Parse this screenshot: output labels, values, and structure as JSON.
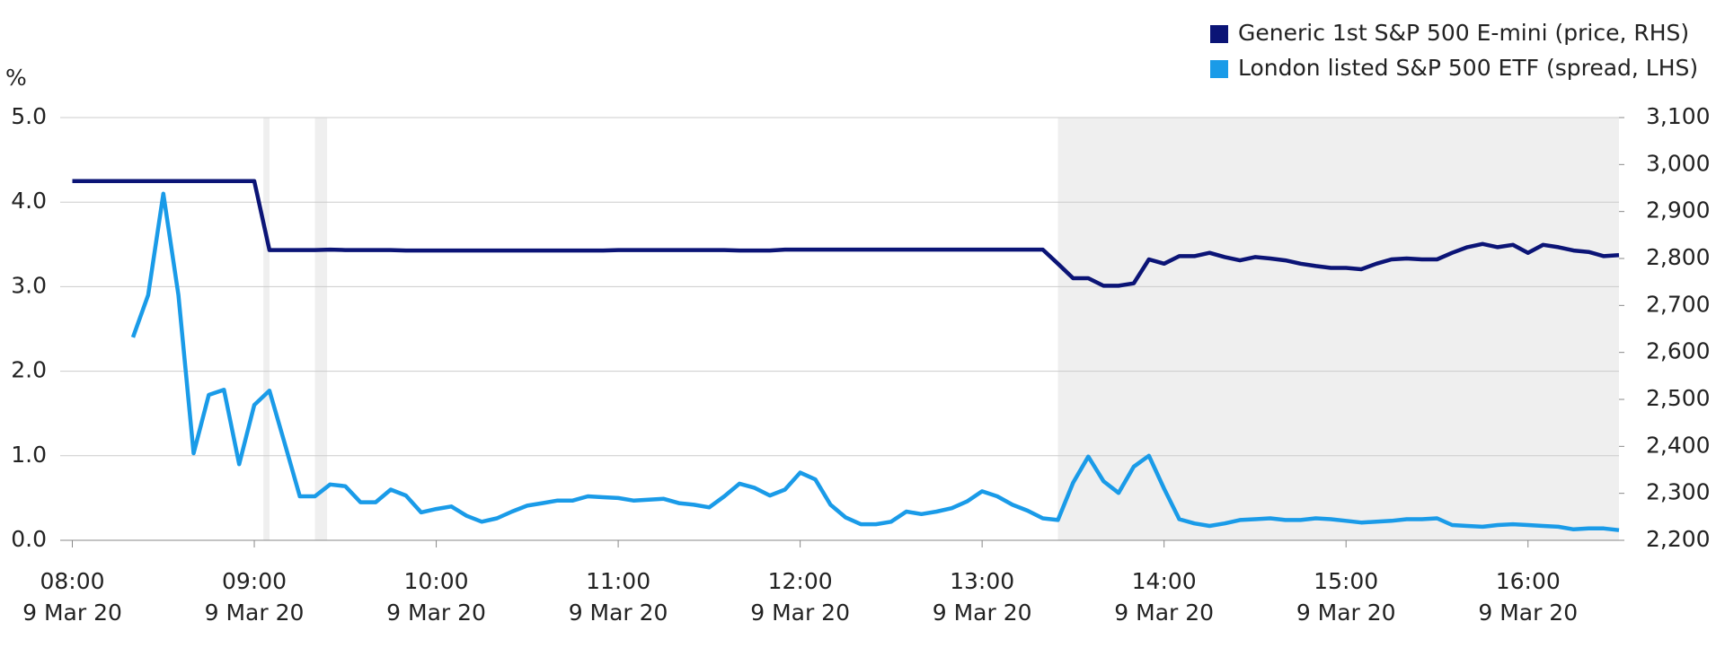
{
  "chart_data": {
    "type": "line",
    "y_label": "%",
    "x": [
      "2020-03-09T08:00",
      "2020-03-09T08:05",
      "2020-03-09T08:10",
      "2020-03-09T08:15",
      "2020-03-09T08:20",
      "2020-03-09T08:25",
      "2020-03-09T08:30",
      "2020-03-09T08:35",
      "2020-03-09T08:40",
      "2020-03-09T08:45",
      "2020-03-09T08:50",
      "2020-03-09T08:55",
      "2020-03-09T09:00",
      "2020-03-09T09:05",
      "2020-03-09T09:10",
      "2020-03-09T09:15",
      "2020-03-09T09:20",
      "2020-03-09T09:25",
      "2020-03-09T09:30",
      "2020-03-09T09:35",
      "2020-03-09T09:40",
      "2020-03-09T09:45",
      "2020-03-09T09:50",
      "2020-03-09T09:55",
      "2020-03-09T10:00",
      "2020-03-09T10:05",
      "2020-03-09T10:10",
      "2020-03-09T10:15",
      "2020-03-09T10:20",
      "2020-03-09T10:25",
      "2020-03-09T10:30",
      "2020-03-09T10:35",
      "2020-03-09T10:40",
      "2020-03-09T10:45",
      "2020-03-09T10:50",
      "2020-03-09T10:55",
      "2020-03-09T11:00",
      "2020-03-09T11:05",
      "2020-03-09T11:10",
      "2020-03-09T11:15",
      "2020-03-09T11:20",
      "2020-03-09T11:25",
      "2020-03-09T11:30",
      "2020-03-09T11:35",
      "2020-03-09T11:40",
      "2020-03-09T11:45",
      "2020-03-09T11:50",
      "2020-03-09T11:55",
      "2020-03-09T12:00",
      "2020-03-09T12:05",
      "2020-03-09T12:10",
      "2020-03-09T12:15",
      "2020-03-09T12:20",
      "2020-03-09T12:25",
      "2020-03-09T12:30",
      "2020-03-09T12:35",
      "2020-03-09T12:40",
      "2020-03-09T12:45",
      "2020-03-09T12:50",
      "2020-03-09T12:55",
      "2020-03-09T13:00",
      "2020-03-09T13:05",
      "2020-03-09T13:10",
      "2020-03-09T13:15",
      "2020-03-09T13:20",
      "2020-03-09T13:25",
      "2020-03-09T13:30",
      "2020-03-09T13:35",
      "2020-03-09T13:40",
      "2020-03-09T13:45",
      "2020-03-09T13:50",
      "2020-03-09T13:55",
      "2020-03-09T14:00",
      "2020-03-09T14:05",
      "2020-03-09T14:10",
      "2020-03-09T14:15",
      "2020-03-09T14:20",
      "2020-03-09T14:25",
      "2020-03-09T14:30",
      "2020-03-09T14:35",
      "2020-03-09T14:40",
      "2020-03-09T14:45",
      "2020-03-09T14:50",
      "2020-03-09T14:55",
      "2020-03-09T15:00",
      "2020-03-09T15:05",
      "2020-03-09T15:10",
      "2020-03-09T15:15",
      "2020-03-09T15:20",
      "2020-03-09T15:25",
      "2020-03-09T15:30",
      "2020-03-09T15:35",
      "2020-03-09T15:40",
      "2020-03-09T15:45",
      "2020-03-09T15:50",
      "2020-03-09T15:55",
      "2020-03-09T16:00",
      "2020-03-09T16:05",
      "2020-03-09T16:10",
      "2020-03-09T16:15",
      "2020-03-09T16:20",
      "2020-03-09T16:25",
      "2020-03-09T16:30"
    ],
    "series": [
      {
        "name": "Generic 1st S&P 500 E-mini (price, RHS)",
        "color": "#0b1476",
        "axis": "y2",
        "values": [
          2965,
          2965,
          2965,
          2965,
          2965,
          2965,
          2965,
          2965,
          2965,
          2965,
          2965,
          2965,
          2965,
          2818,
          2818,
          2818,
          2818,
          2819,
          2818,
          2818,
          2818,
          2818,
          2817,
          2817,
          2817,
          2817,
          2817,
          2817,
          2817,
          2817,
          2817,
          2817,
          2817,
          2817,
          2817,
          2817,
          2818,
          2818,
          2818,
          2818,
          2818,
          2818,
          2818,
          2818,
          2817,
          2817,
          2817,
          2819,
          2819,
          2819,
          2819,
          2819,
          2819,
          2819,
          2819,
          2819,
          2819,
          2819,
          2819,
          2819,
          2819,
          2819,
          2819,
          2819,
          2819,
          2789,
          2758,
          2758,
          2742,
          2742,
          2747,
          2798,
          2789,
          2805,
          2805,
          2812,
          2803,
          2796,
          2803,
          2800,
          2796,
          2789,
          2784,
          2780,
          2780,
          2777,
          2789,
          2798,
          2800,
          2798,
          2798,
          2812,
          2824,
          2831,
          2824,
          2829,
          2812,
          2829,
          2824,
          2817,
          2814,
          2805,
          2807
        ]
      },
      {
        "name": "London listed S&P 500 ETF (spread, LHS)",
        "color": "#1a9be8",
        "values": [
          null,
          null,
          null,
          null,
          2.4,
          2.9,
          4.1,
          2.9,
          1.03,
          1.72,
          1.78,
          0.9,
          1.6,
          1.77,
          1.15,
          0.52,
          0.52,
          0.66,
          0.64,
          0.45,
          0.45,
          0.6,
          0.53,
          0.33,
          0.37,
          0.4,
          0.29,
          0.22,
          0.26,
          0.34,
          0.41,
          0.44,
          0.47,
          0.47,
          0.52,
          0.51,
          0.5,
          0.47,
          0.48,
          0.49,
          0.44,
          0.42,
          0.39,
          0.52,
          0.67,
          0.62,
          0.53,
          0.6,
          0.8,
          0.72,
          0.42,
          0.27,
          0.19,
          0.19,
          0.22,
          0.34,
          0.31,
          0.34,
          0.38,
          0.46,
          0.58,
          0.52,
          0.42,
          0.35,
          0.26,
          0.24,
          0.68,
          0.99,
          0.7,
          0.56,
          0.87,
          1.0,
          0.61,
          0.25,
          0.2,
          0.17,
          0.2,
          0.24,
          0.25,
          0.26,
          0.24,
          0.24,
          0.26,
          0.25,
          0.23,
          0.21,
          0.22,
          0.23,
          0.25,
          0.25,
          0.26,
          0.18,
          0.17,
          0.16,
          0.18,
          0.19,
          0.18,
          0.17,
          0.16,
          0.13,
          0.14,
          0.14,
          0.12
        ]
      }
    ],
    "shaded": [
      [
        "2020-03-09T09:03",
        "2020-03-09T09:05"
      ],
      [
        "2020-03-09T09:20",
        "2020-03-09T09:24"
      ],
      [
        "2020-03-09T13:25",
        "2020-03-09T16:30"
      ]
    ],
    "xlim": [
      "2020-03-09T07:56",
      "2020-03-09T16:30"
    ],
    "xticks": [
      {
        "value": "2020-03-09T08:00",
        "time": "08:00",
        "date": "9 Mar 20"
      },
      {
        "value": "2020-03-09T09:00",
        "time": "09:00",
        "date": "9 Mar 20"
      },
      {
        "value": "2020-03-09T10:00",
        "time": "10:00",
        "date": "9 Mar 20"
      },
      {
        "value": "2020-03-09T11:00",
        "time": "11:00",
        "date": "9 Mar 20"
      },
      {
        "value": "2020-03-09T12:00",
        "time": "12:00",
        "date": "9 Mar 20"
      },
      {
        "value": "2020-03-09T13:00",
        "time": "13:00",
        "date": "9 Mar 20"
      },
      {
        "value": "2020-03-09T14:00",
        "time": "14:00",
        "date": "9 Mar 20"
      },
      {
        "value": "2020-03-09T15:00",
        "time": "15:00",
        "date": "9 Mar 20"
      },
      {
        "value": "2020-03-09T16:00",
        "time": "16:00",
        "date": "9 Mar 20"
      }
    ],
    "ylim": [
      0,
      5
    ],
    "yticks": [
      {
        "value": 0,
        "label": "0.0"
      },
      {
        "value": 1,
        "label": "1.0"
      },
      {
        "value": 2,
        "label": "2.0"
      },
      {
        "value": 3,
        "label": "3.0"
      },
      {
        "value": 4,
        "label": "4.0"
      },
      {
        "value": 5,
        "label": "5.0"
      }
    ],
    "y2lim": [
      2200,
      3100
    ],
    "y2ticks": [
      {
        "value": 2200,
        "label": "2,200"
      },
      {
        "value": 2300,
        "label": "2,300"
      },
      {
        "value": 2400,
        "label": "2,400"
      },
      {
        "value": 2500,
        "label": "2,500"
      },
      {
        "value": 2600,
        "label": "2,600"
      },
      {
        "value": 2700,
        "label": "2,700"
      },
      {
        "value": 2800,
        "label": "2,800"
      },
      {
        "value": 2900,
        "label": "2,900"
      },
      {
        "value": 3000,
        "label": "3,000"
      },
      {
        "value": 3100,
        "label": "3,100"
      }
    ],
    "grid": true,
    "legend": "top-right",
    "shade_color": "#efefef"
  }
}
